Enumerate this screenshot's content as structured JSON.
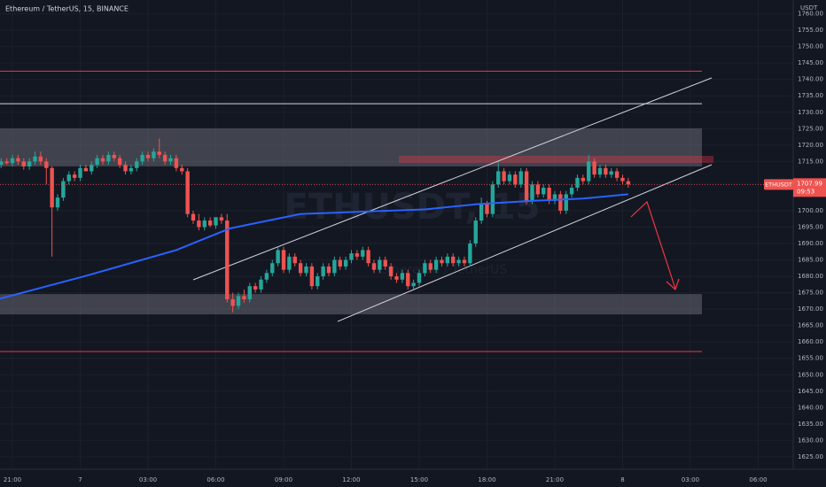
{
  "chart_data": {
    "type": "candlestick",
    "title": "Ethereum / TetherUS, 15, BINANCE",
    "symbol": "ETHUSDT",
    "watermark": "ETHUSDT, 15",
    "watermark_sub": "Ethereum / TetherUS",
    "currency": "USDT",
    "countdown": "09:53",
    "up_color": "#26a69a",
    "down_color": "#ef5350",
    "grid": true,
    "xlim": [
      -0.2,
      140.2
    ],
    "ylim": [
      1621.2,
      1764.2
    ],
    "xticks": [
      {
        "value": 2,
        "label": "21:00"
      },
      {
        "value": 14,
        "label": "7"
      },
      {
        "value": 26,
        "label": "03:00"
      },
      {
        "value": 38,
        "label": "06:00"
      },
      {
        "value": 50,
        "label": "09:00"
      },
      {
        "value": 62,
        "label": "12:00"
      },
      {
        "value": 74,
        "label": "15:00"
      },
      {
        "value": 86,
        "label": "18:00"
      },
      {
        "value": 98,
        "label": "21:00"
      },
      {
        "value": 110,
        "label": "8"
      },
      {
        "value": 122,
        "label": "03:00"
      },
      {
        "value": 134,
        "label": "06:00"
      }
    ],
    "yticks": [
      {
        "value": 1625,
        "label": "1625.00"
      },
      {
        "value": 1630,
        "label": "1630.00"
      },
      {
        "value": 1635,
        "label": "1635.00"
      },
      {
        "value": 1640,
        "label": "1640.00"
      },
      {
        "value": 1645,
        "label": "1645.00"
      },
      {
        "value": 1650,
        "label": "1650.00"
      },
      {
        "value": 1655,
        "label": "1655.00"
      },
      {
        "value": 1660,
        "label": "1660.00"
      },
      {
        "value": 1665,
        "label": "1665.00"
      },
      {
        "value": 1670,
        "label": "1670.00"
      },
      {
        "value": 1675,
        "label": "1675.00"
      },
      {
        "value": 1680,
        "label": "1680.00"
      },
      {
        "value": 1685,
        "label": "1685.00"
      },
      {
        "value": 1690,
        "label": "1690.00"
      },
      {
        "value": 1695,
        "label": "1695.00"
      },
      {
        "value": 1700,
        "label": "1700.00"
      },
      {
        "value": 1715,
        "label": "1715.00"
      },
      {
        "value": 1720,
        "label": "1720.00"
      },
      {
        "value": 1725,
        "label": "1725.00"
      },
      {
        "value": 1730,
        "label": "1730.00"
      },
      {
        "value": 1735,
        "label": "1735.00"
      },
      {
        "value": 1740,
        "label": "1740.00"
      },
      {
        "value": 1745,
        "label": "1745.00"
      },
      {
        "value": 1750,
        "label": "1750.00"
      },
      {
        "value": 1755,
        "label": "1755.00"
      },
      {
        "value": 1760,
        "label": "1760.00"
      }
    ],
    "open": [
      1714,
      1715,
      1714.5,
      1716,
      1715,
      1713.5,
      1715,
      1716.5,
      1715,
      1713,
      1701,
      1704,
      1709,
      1711,
      1710,
      1713,
      1712,
      1714,
      1716,
      1715,
      1717,
      1716,
      1714,
      1712,
      1713,
      1715,
      1717,
      1716,
      1718,
      1717,
      1715,
      1716,
      1713,
      1712,
      1699,
      1697,
      1695,
      1697,
      1695.5,
      1698,
      1697,
      1673,
      1671,
      1674,
      1673,
      1677,
      1676,
      1679,
      1681,
      1684,
      1688,
      1682,
      1686,
      1684,
      1681,
      1683,
      1677,
      1680,
      1683,
      1681,
      1685,
      1683,
      1685,
      1687,
      1686,
      1688,
      1684,
      1682,
      1685,
      1683,
      1680,
      1679,
      1681,
      1677,
      1678,
      1681,
      1684,
      1682,
      1685,
      1684,
      1686,
      1684,
      1685,
      1684,
      1690,
      1697,
      1702,
      1699,
      1708,
      1712,
      1709,
      1711,
      1708,
      1712,
      1703,
      1708,
      1705,
      1707,
      1703,
      1705,
      1700,
      1705,
      1707,
      1710,
      1709,
      1715,
      1711,
      1713,
      1711,
      1712,
      1710,
      1709
    ],
    "high": [
      1716,
      1716,
      1717,
      1717,
      1716,
      1716,
      1718,
      1718,
      1716,
      1713.5,
      1705,
      1710,
      1712,
      1712,
      1714,
      1714,
      1715,
      1717,
      1717,
      1718,
      1718,
      1717,
      1715,
      1714,
      1716,
      1718,
      1718,
      1719,
      1722,
      1718,
      1717,
      1717,
      1714,
      1713,
      1700,
      1699,
      1698,
      1698,
      1698,
      1699,
      1699,
      1675,
      1675,
      1676,
      1678,
      1678,
      1680,
      1682,
      1685,
      1689,
      1689,
      1687,
      1687,
      1685,
      1684,
      1684,
      1681,
      1684,
      1684,
      1686,
      1686,
      1686,
      1688,
      1688,
      1689,
      1689,
      1685,
      1686,
      1686,
      1684,
      1681,
      1682,
      1682,
      1679,
      1682,
      1685,
      1685,
      1686,
      1686,
      1687,
      1687,
      1686,
      1686,
      1691,
      1698,
      1704,
      1703,
      1709,
      1715,
      1713,
      1712,
      1712,
      1713,
      1713,
      1709,
      1709,
      1708,
      1708,
      1706,
      1706,
      1706,
      1708,
      1711,
      1711,
      1717,
      1716,
      1714,
      1714,
      1713,
      1713,
      1711,
      1710
    ],
    "low": [
      1713,
      1714,
      1713.5,
      1714,
      1712.5,
      1712.5,
      1714,
      1714,
      1708,
      1686,
      1700,
      1703,
      1708,
      1709,
      1709,
      1712,
      1711,
      1713,
      1714,
      1714,
      1715,
      1713,
      1711,
      1711,
      1712,
      1714,
      1715,
      1715,
      1716,
      1714,
      1714,
      1712,
      1711,
      1698,
      1696,
      1694,
      1694,
      1695,
      1694.5,
      1696,
      1672,
      1669,
      1670,
      1672,
      1672,
      1675,
      1675,
      1678,
      1680,
      1683,
      1681,
      1681,
      1683,
      1680,
      1680,
      1676,
      1676,
      1679,
      1680,
      1680,
      1682,
      1682,
      1684,
      1685,
      1685,
      1683,
      1681,
      1681,
      1682,
      1679,
      1678,
      1678,
      1676,
      1676,
      1677,
      1680,
      1681,
      1681,
      1683,
      1683,
      1683,
      1683,
      1683,
      1683,
      1689,
      1696,
      1698,
      1698,
      1707,
      1708,
      1708,
      1707,
      1707,
      1702,
      1702,
      1704,
      1704,
      1702,
      1702,
      1699,
      1699,
      1704,
      1706,
      1708,
      1708,
      1710,
      1710,
      1710,
      1710,
      1709,
      1708,
      1707
    ],
    "close": [
      1715,
      1714.5,
      1716,
      1715,
      1713.5,
      1715,
      1716.5,
      1715,
      1713,
      1701,
      1704,
      1709,
      1711,
      1710,
      1713,
      1712,
      1714,
      1716,
      1715,
      1717,
      1716,
      1714,
      1712,
      1713,
      1715,
      1717,
      1716,
      1718,
      1717,
      1715,
      1716,
      1713,
      1712,
      1699,
      1697,
      1695,
      1697,
      1695.5,
      1698,
      1697,
      1673,
      1671,
      1674,
      1673,
      1677,
      1676,
      1679,
      1681,
      1684,
      1688,
      1682,
      1686,
      1684,
      1681,
      1683,
      1677,
      1680,
      1683,
      1681,
      1685,
      1683,
      1685,
      1687,
      1686,
      1688,
      1684,
      1682,
      1685,
      1683,
      1680,
      1679,
      1681,
      1677,
      1678,
      1681,
      1684,
      1682,
      1685,
      1684,
      1686,
      1684,
      1685,
      1684,
      1690,
      1697,
      1702,
      1699,
      1708,
      1712,
      1709,
      1711,
      1708,
      1712,
      1703,
      1708,
      1705,
      1707,
      1703,
      1705,
      1700,
      1705,
      1707,
      1710,
      1709,
      1715,
      1711,
      1713,
      1711,
      1712,
      1710,
      1709,
      1707.99
    ],
    "ma": {
      "color": "#2962ff",
      "x": [
        -0.2,
        14.7,
        31,
        40.5,
        53,
        62.5,
        75,
        84.4,
        93.8,
        103,
        111
      ],
      "values": [
        1673.2,
        1680,
        1688,
        1694.6,
        1699,
        1699.6,
        1700.4,
        1702,
        1703,
        1703.7,
        1705
      ]
    },
    "levels": [
      {
        "value": 1742.5,
        "color": "#f23645"
      },
      {
        "value": 1732.6,
        "color": "#d1d4dc"
      },
      {
        "value": 1657.1,
        "color": "#f23645"
      }
    ],
    "zones": [
      {
        "from": 1713.5,
        "to": 1725.1
      },
      {
        "from": 1668.4,
        "to": 1674.6
      }
    ]
  }
}
